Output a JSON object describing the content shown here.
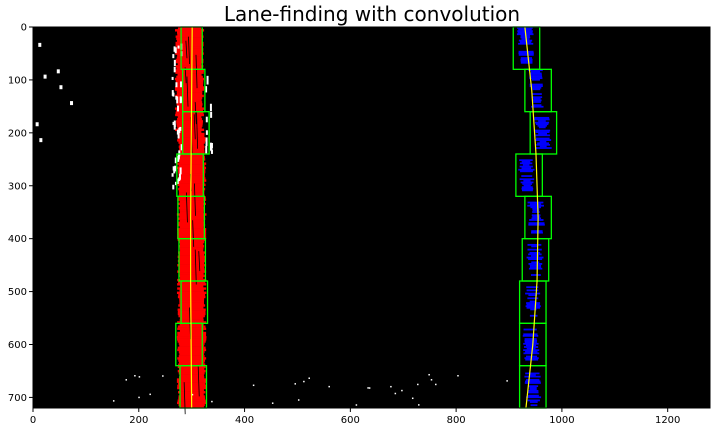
{
  "chart_data": {
    "type": "scatter",
    "title": "Lane-finding with convolution",
    "xlabel": "",
    "ylabel": "",
    "xlim": [
      0,
      1280
    ],
    "ylim": [
      720,
      0
    ],
    "x_ticks": [
      0,
      200,
      400,
      600,
      800,
      1000,
      1200
    ],
    "y_ticks": [
      0,
      100,
      200,
      300,
      400,
      500,
      600,
      700
    ],
    "grid": false,
    "background": "#000000",
    "colors": {
      "left_lane_pixels": "#ff0000",
      "right_lane_pixels": "#0000ff",
      "other_pixels": "#ffffff",
      "windows": "#00ff00",
      "fit_line": "#ffff00"
    },
    "left_windows": [
      {
        "x0": 280,
        "x1": 320,
        "y0": 0,
        "y1": 80
      },
      {
        "x0": 283,
        "x1": 325,
        "y0": 80,
        "y1": 160
      },
      {
        "x0": 283,
        "x1": 333,
        "y0": 160,
        "y1": 240
      },
      {
        "x0": 272,
        "x1": 322,
        "y0": 240,
        "y1": 320
      },
      {
        "x0": 274,
        "x1": 324,
        "y0": 320,
        "y1": 400
      },
      {
        "x0": 276,
        "x1": 326,
        "y0": 400,
        "y1": 480
      },
      {
        "x0": 280,
        "x1": 330,
        "y0": 480,
        "y1": 560
      },
      {
        "x0": 270,
        "x1": 320,
        "y0": 560,
        "y1": 640
      },
      {
        "x0": 278,
        "x1": 328,
        "y0": 640,
        "y1": 720
      }
    ],
    "right_windows": [
      {
        "x0": 908,
        "x1": 958,
        "y0": 0,
        "y1": 80
      },
      {
        "x0": 930,
        "x1": 980,
        "y0": 80,
        "y1": 160
      },
      {
        "x0": 940,
        "x1": 990,
        "y0": 160,
        "y1": 240
      },
      {
        "x0": 913,
        "x1": 963,
        "y0": 240,
        "y1": 320
      },
      {
        "x0": 930,
        "x1": 980,
        "y0": 320,
        "y1": 400
      },
      {
        "x0": 925,
        "x1": 975,
        "y0": 400,
        "y1": 480
      },
      {
        "x0": 920,
        "x1": 970,
        "y0": 480,
        "y1": 560
      },
      {
        "x0": 920,
        "x1": 970,
        "y0": 560,
        "y1": 640
      },
      {
        "x0": 920,
        "x1": 970,
        "y0": 640,
        "y1": 720
      }
    ],
    "left_fit": {
      "x": [
        301,
        300,
        299,
        298,
        298,
        299,
        300
      ],
      "y": [
        0,
        120,
        240,
        360,
        480,
        600,
        720
      ]
    },
    "right_fit": {
      "x": [
        930,
        943,
        951,
        955,
        953,
        945,
        932
      ],
      "y": [
        0,
        120,
        240,
        360,
        480,
        600,
        720
      ]
    }
  }
}
